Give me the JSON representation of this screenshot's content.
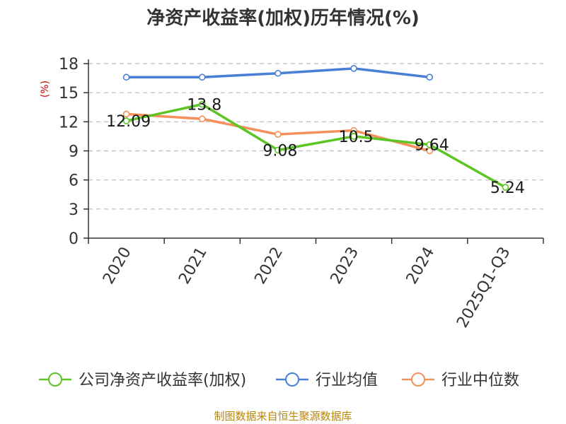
{
  "chart_data": {
    "type": "line",
    "title": "净资产收益率(加权)历年情况(%)",
    "ylabel": "(%)",
    "categories": [
      "2020",
      "2021",
      "2022",
      "2023",
      "2024",
      "2025Q1-Q3"
    ],
    "ylim": [
      0,
      18
    ],
    "yticks": [
      0,
      3,
      6,
      9,
      12,
      15,
      18
    ],
    "ytick_labels": [
      "0",
      "3",
      "6",
      "9",
      "12",
      "15",
      "18"
    ],
    "grid": true,
    "legend_position": "bottom",
    "series": [
      {
        "name": "公司净资产收益率(加权)",
        "color": "#5cc424",
        "values": [
          12.09,
          13.8,
          9.08,
          10.5,
          9.64,
          5.24
        ],
        "labels": [
          "12.09",
          "13.8",
          "9.08",
          "10.5",
          "9.64",
          "5.24"
        ]
      },
      {
        "name": "行业均值",
        "color": "#4a7fd6",
        "values": [
          16.6,
          16.6,
          17.0,
          17.5,
          16.6,
          null
        ]
      },
      {
        "name": "行业中位数",
        "color": "#f5905a",
        "values": [
          12.8,
          12.3,
          10.7,
          11.1,
          9.0,
          null
        ]
      }
    ]
  },
  "source": "制图数据来自恒生聚源数据库"
}
